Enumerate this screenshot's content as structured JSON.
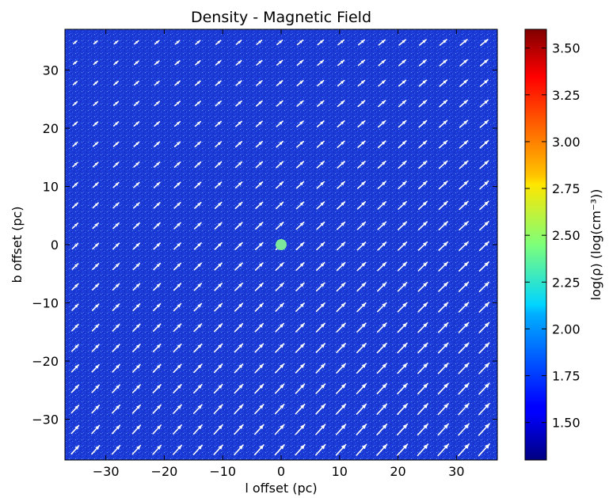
{
  "chart_data": {
    "type": "heatmap",
    "title": "Density - Magnetic Field",
    "xlabel": "l offset (pc)",
    "ylabel": "b offset (pc)",
    "xlim": [
      -37,
      37
    ],
    "ylim": [
      -37,
      37
    ],
    "xticks": [
      "−30",
      "−20",
      "−10",
      "0",
      "10",
      "20",
      "30"
    ],
    "xtick_values": [
      -30,
      -20,
      -10,
      0,
      10,
      20,
      30
    ],
    "yticks": [
      "30",
      "20",
      "10",
      "0",
      "−10",
      "−20",
      "−30"
    ],
    "ytick_values": [
      30,
      20,
      10,
      0,
      -10,
      -20,
      -30
    ],
    "colorbar": {
      "label": "log(ρ)  (log(cm⁻³))",
      "range": [
        1.3,
        3.6
      ],
      "ticks": [
        "3.50",
        "3.25",
        "3.00",
        "2.75",
        "2.50",
        "2.25",
        "2.00",
        "1.75",
        "1.50"
      ],
      "tick_values": [
        3.5,
        3.25,
        3.0,
        2.75,
        2.5,
        2.25,
        2.0,
        1.75,
        1.5
      ],
      "colormap": "jet"
    },
    "background_value": 1.4,
    "marker": {
      "x": 0,
      "y": 0,
      "color": "#7be89c"
    },
    "vector_field": {
      "color": "#ffffff",
      "grid_spacing_pc": 3.5,
      "direction": "up-right",
      "magnitude_trend": "grows toward lower-right"
    },
    "grid": false
  }
}
